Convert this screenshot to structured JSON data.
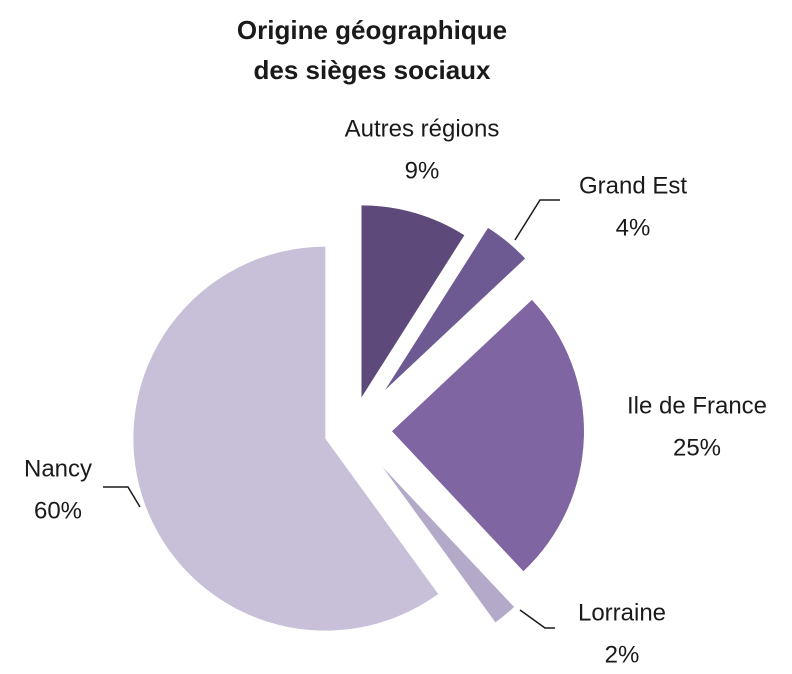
{
  "chart_data": {
    "type": "pie",
    "title": [
      "Origine géographique",
      "des sièges sociaux"
    ],
    "categories": [
      "Autres régions",
      "Grand Est",
      "Ile de France",
      "Lorraine",
      "Nancy"
    ],
    "values": [
      9,
      4,
      25,
      2,
      60
    ],
    "value_labels": [
      "9%",
      "4%",
      "25%",
      "2%",
      "60%"
    ],
    "colors": [
      "#5e4a7a",
      "#6e5a92",
      "#7f65a1",
      "#b4a9c9",
      "#c8c0d8"
    ]
  }
}
